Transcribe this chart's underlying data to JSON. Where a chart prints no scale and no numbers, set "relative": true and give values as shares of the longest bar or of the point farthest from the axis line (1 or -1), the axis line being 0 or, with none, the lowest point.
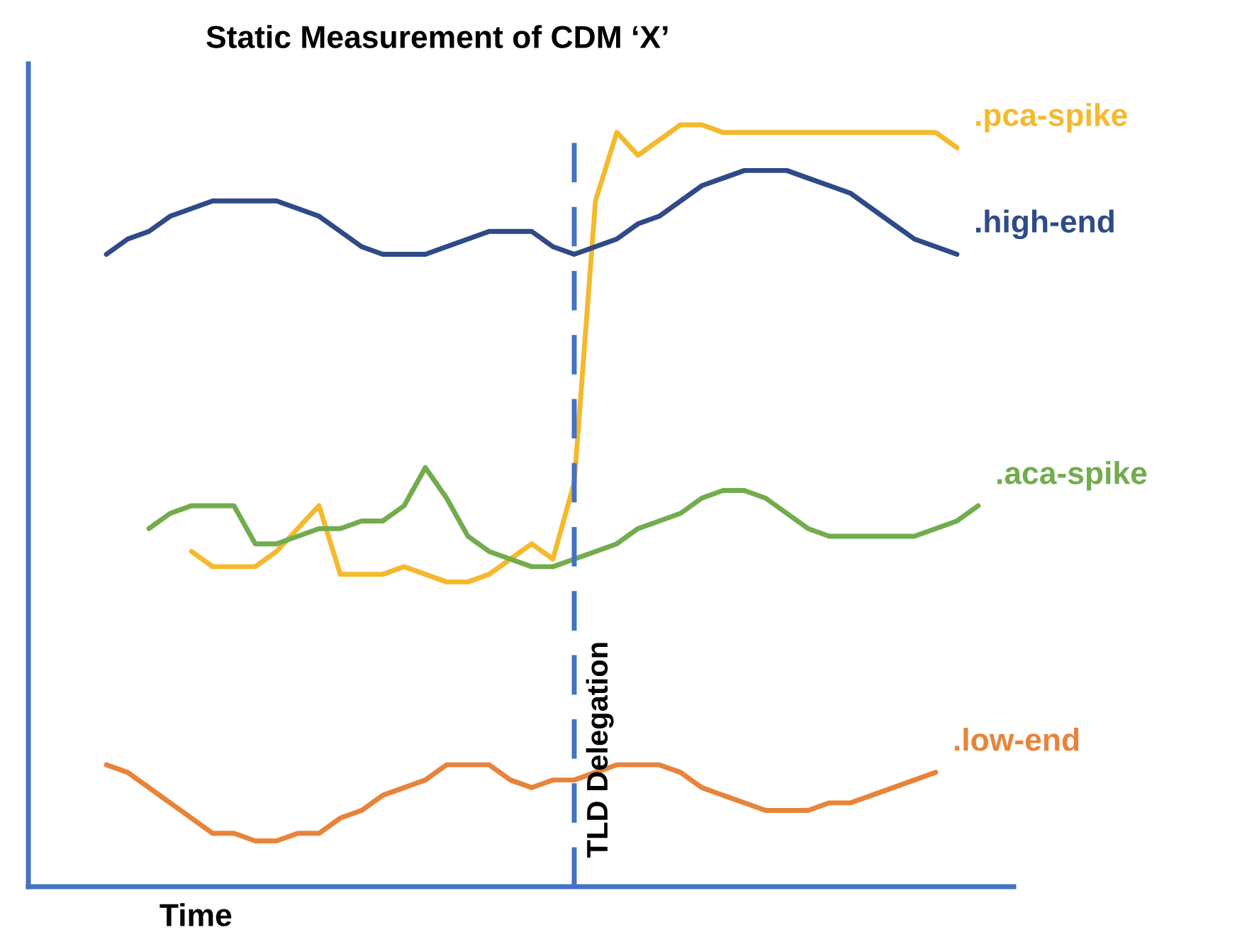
{
  "chart_data": {
    "type": "line",
    "title": "Static Measurement of CDM ‘X’",
    "xlabel": "Time",
    "relative": true,
    "legend": false,
    "marker": "none",
    "line_style": "solid",
    "categories": [
      null,
      null,
      null,
      null,
      null,
      null,
      null,
      null,
      null,
      null,
      null,
      null,
      null,
      null,
      null,
      null,
      null,
      null,
      null,
      null,
      null,
      null,
      null,
      null,
      null,
      null,
      null,
      null,
      null,
      null,
      null,
      null,
      null,
      null,
      null,
      null,
      null,
      null,
      null,
      null,
      null,
      null,
      null
    ],
    "series": [
      {
        "name": ".pca-spike",
        "color": "#f5b92e",
        "values": [
          null,
          null,
          null,
          null,
          0.44,
          0.42,
          0.42,
          0.42,
          0.44,
          0.47,
          0.5,
          0.41,
          0.41,
          0.41,
          0.42,
          0.41,
          0.4,
          0.4,
          0.41,
          0.43,
          0.45,
          0.43,
          0.53,
          0.9,
          0.99,
          0.96,
          0.98,
          1.0,
          1.0,
          0.99,
          0.99,
          0.99,
          0.99,
          0.99,
          0.99,
          0.99,
          0.99,
          0.99,
          0.99,
          0.99,
          0.97,
          null,
          null
        ]
      },
      {
        "name": ".high-end",
        "color": "#2e4a87",
        "values": [
          0.83,
          0.85,
          0.86,
          0.88,
          0.89,
          0.9,
          0.9,
          0.9,
          0.9,
          0.89,
          0.88,
          0.86,
          0.84,
          0.83,
          0.83,
          0.83,
          0.84,
          0.85,
          0.86,
          0.86,
          0.86,
          0.84,
          0.83,
          0.84,
          0.85,
          0.87,
          0.88,
          0.9,
          0.92,
          0.93,
          0.94,
          0.94,
          0.94,
          0.93,
          0.92,
          0.91,
          0.89,
          0.87,
          0.85,
          0.84,
          0.83,
          null,
          null
        ]
      },
      {
        "name": ".aca-spike",
        "color": "#72ac4d",
        "values": [
          null,
          null,
          0.47,
          0.49,
          0.5,
          0.5,
          0.5,
          0.45,
          0.45,
          0.46,
          0.47,
          0.47,
          0.48,
          0.48,
          0.5,
          0.55,
          0.51,
          0.46,
          0.44,
          0.43,
          0.42,
          0.42,
          0.43,
          0.44,
          0.45,
          0.47,
          0.48,
          0.49,
          0.51,
          0.52,
          0.52,
          0.51,
          0.49,
          0.47,
          0.46,
          0.46,
          0.46,
          0.46,
          0.46,
          0.47,
          0.48,
          0.5,
          null
        ]
      },
      {
        "name": ".low-end",
        "color": "#e8833a",
        "values": [
          0.16,
          0.15,
          0.13,
          0.11,
          0.09,
          0.07,
          0.07,
          0.06,
          0.06,
          0.07,
          0.07,
          0.09,
          0.1,
          0.12,
          0.13,
          0.14,
          0.16,
          0.16,
          0.16,
          0.14,
          0.13,
          0.14,
          0.14,
          0.15,
          0.16,
          0.16,
          0.16,
          0.15,
          0.13,
          0.12,
          0.11,
          0.1,
          0.1,
          0.1,
          0.11,
          0.11,
          0.12,
          0.13,
          0.14,
          0.15,
          null,
          null,
          null
        ]
      }
    ],
    "annotations": [
      "TLD Delegation"
    ]
  }
}
